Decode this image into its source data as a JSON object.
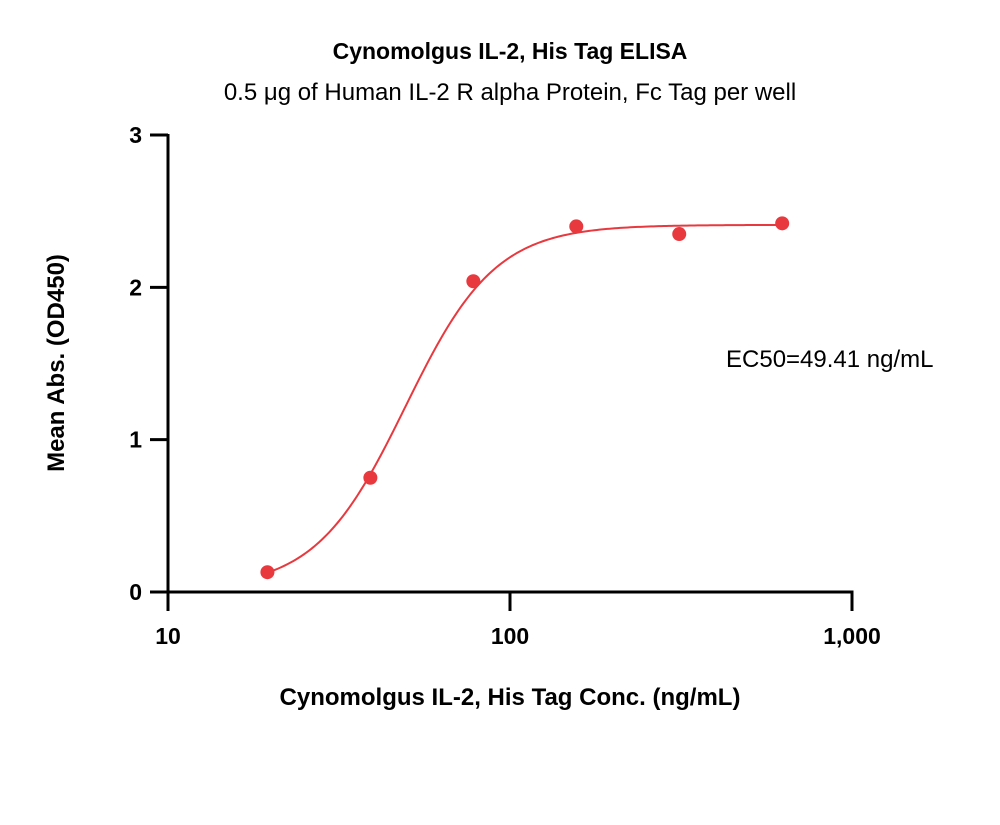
{
  "chart_data": {
    "type": "scatter",
    "title": "Cynomolgus IL-2, His Tag ELISA",
    "subtitle": "0.5 μg of Human IL-2 R alpha Protein, Fc Tag per well",
    "xlabel": "Cynomolgus IL-2, His Tag Conc. (ng/mL)",
    "ylabel": "Mean Abs. (OD450)",
    "x_scale": "log",
    "xlim": [
      10,
      1000
    ],
    "ylim": [
      0,
      3
    ],
    "x_ticks": [
      10,
      100,
      1000
    ],
    "x_tick_labels": [
      "10",
      "100",
      "1,000"
    ],
    "y_ticks": [
      0,
      1,
      2,
      3
    ],
    "y_tick_labels": [
      "0",
      "1",
      "2",
      "3"
    ],
    "grid": false,
    "series": [
      {
        "x": [
          19.53,
          39.06,
          78.13,
          156.25,
          312.5,
          625
        ],
        "y": [
          0.13,
          0.75,
          2.04,
          2.4,
          2.35,
          2.42
        ],
        "color": "#e8393f"
      }
    ],
    "fit": {
      "type": "4PL",
      "bottom": 0.02,
      "top": 2.41,
      "ec50": 49.41,
      "hill": 3.3,
      "color": "#e8393f"
    },
    "annotation": "EC50=49.41 ng/mL"
  }
}
